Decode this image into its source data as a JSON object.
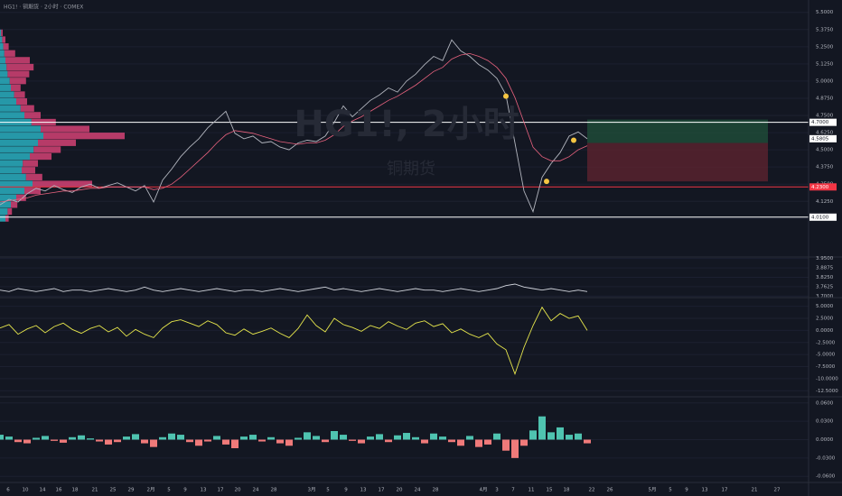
{
  "title": "HG1! · 铜期货 · 2小时 · COMEX",
  "watermark": {
    "main": "HG1!, 2小时",
    "sub": "铜期货"
  },
  "chart_data": [
    {
      "type": "line",
      "name": "price",
      "x": [
        0,
        1,
        2,
        3,
        4,
        5,
        6,
        7,
        8,
        9,
        10,
        11,
        12,
        13,
        14,
        15,
        16,
        17,
        18,
        19,
        20,
        21,
        22,
        23,
        24,
        25,
        26,
        27,
        28,
        29,
        30,
        31,
        32,
        33,
        34,
        35,
        36,
        37,
        38,
        39,
        40,
        41,
        42,
        43,
        44,
        45,
        46,
        47,
        48,
        49,
        50,
        51,
        52,
        53,
        54,
        55,
        56,
        57,
        58,
        59,
        60,
        61,
        62,
        63,
        64,
        65
      ],
      "series": [
        {
          "color": "#b2b5be",
          "values": [
            4.1,
            4.14,
            4.12,
            4.18,
            4.22,
            4.2,
            4.24,
            4.21,
            4.19,
            4.23,
            4.25,
            4.22,
            4.24,
            4.26,
            4.23,
            4.2,
            4.24,
            4.12,
            4.28,
            4.36,
            4.45,
            4.52,
            4.58,
            4.66,
            4.72,
            4.78,
            4.62,
            4.58,
            4.6,
            4.55,
            4.56,
            4.52,
            4.5,
            4.55,
            4.57,
            4.56,
            4.6,
            4.7,
            4.82,
            4.74,
            4.8,
            4.86,
            4.9,
            4.95,
            4.92,
            5.0,
            5.05,
            5.12,
            5.18,
            5.15,
            5.3,
            5.22,
            5.18,
            5.12,
            5.08,
            5.02,
            4.9,
            4.55,
            4.2,
            4.05,
            4.3,
            4.4,
            4.48,
            4.6,
            4.63,
            4.58
          ]
        },
        {
          "color": "#e8627e",
          "values": [
            4.12,
            4.13,
            4.14,
            4.15,
            4.17,
            4.18,
            4.19,
            4.2,
            4.2,
            4.21,
            4.22,
            4.22,
            4.23,
            4.23,
            4.23,
            4.23,
            4.23,
            4.21,
            4.22,
            4.25,
            4.3,
            4.36,
            4.42,
            4.48,
            4.55,
            4.61,
            4.64,
            4.63,
            4.62,
            4.6,
            4.58,
            4.56,
            4.55,
            4.54,
            4.55,
            4.55,
            4.57,
            4.61,
            4.67,
            4.71,
            4.74,
            4.78,
            4.82,
            4.86,
            4.89,
            4.93,
            4.97,
            5.02,
            5.07,
            5.1,
            5.16,
            5.19,
            5.2,
            5.18,
            5.15,
            5.1,
            5.02,
            4.88,
            4.7,
            4.52,
            4.45,
            4.42,
            4.42,
            4.45,
            4.5,
            4.53
          ]
        }
      ],
      "xlim": [
        0,
        89.5
      ],
      "xticks": [
        {
          "value": 0.9,
          "label": "6"
        },
        {
          "value": 2.8,
          "label": "10"
        },
        {
          "value": 4.7,
          "label": "14"
        },
        {
          "value": 6.5,
          "label": "16"
        },
        {
          "value": 8.3,
          "label": "18"
        },
        {
          "value": 10.5,
          "label": "21"
        },
        {
          "value": 12.5,
          "label": "25"
        },
        {
          "value": 14.5,
          "label": "29"
        },
        {
          "value": 16.7,
          "label": "2月"
        },
        {
          "value": 18.7,
          "label": "5"
        },
        {
          "value": 20.5,
          "label": "9"
        },
        {
          "value": 22.5,
          "label": "13"
        },
        {
          "value": 24.4,
          "label": "17"
        },
        {
          "value": 26.3,
          "label": "20"
        },
        {
          "value": 28.3,
          "label": "24"
        },
        {
          "value": 30.3,
          "label": "28"
        },
        {
          "value": 34.5,
          "label": "3月"
        },
        {
          "value": 36.3,
          "label": "5"
        },
        {
          "value": 38.3,
          "label": "9"
        },
        {
          "value": 40.2,
          "label": "13"
        },
        {
          "value": 42.2,
          "label": "17"
        },
        {
          "value": 44.2,
          "label": "20"
        },
        {
          "value": 46.2,
          "label": "24"
        },
        {
          "value": 48.2,
          "label": "28"
        },
        {
          "value": 53.5,
          "label": "4月"
        },
        {
          "value": 55.0,
          "label": "3"
        },
        {
          "value": 56.8,
          "label": "7"
        },
        {
          "value": 58.8,
          "label": "11"
        },
        {
          "value": 60.8,
          "label": "15"
        },
        {
          "value": 62.7,
          "label": "18"
        },
        {
          "value": 65.5,
          "label": "22"
        },
        {
          "value": 67.5,
          "label": "26"
        },
        {
          "value": 72.2,
          "label": "5月"
        },
        {
          "value": 74.2,
          "label": "5"
        },
        {
          "value": 76.0,
          "label": "9"
        },
        {
          "value": 78.0,
          "label": "13"
        },
        {
          "value": 80.2,
          "label": "17"
        },
        {
          "value": 83.5,
          "label": "21"
        },
        {
          "value": 86.0,
          "label": "27"
        }
      ],
      "ylim": [
        3.72,
        5.59
      ],
      "yticks": [
        {
          "value": 4.0,
          "label": "4.0000"
        },
        {
          "value": 4.125,
          "label": "4.1250"
        },
        {
          "value": 4.25,
          "label": "4.2500"
        },
        {
          "value": 4.375,
          "label": "4.3750"
        },
        {
          "value": 4.5,
          "label": "4.5000"
        },
        {
          "value": 4.625,
          "label": "4.6250"
        },
        {
          "value": 4.75,
          "label": "4.7500"
        },
        {
          "value": 4.875,
          "label": "4.8750"
        },
        {
          "value": 5.0,
          "label": "5.0000"
        },
        {
          "value": 5.125,
          "label": "5.1250"
        },
        {
          "value": 5.25,
          "label": "5.2500"
        },
        {
          "value": 5.375,
          "label": "5.3750"
        },
        {
          "value": 5.5,
          "label": "5.5000"
        }
      ],
      "grid": true,
      "levels": [
        {
          "value": 4.7,
          "label": "4.7000",
          "color": "#ffffff"
        },
        {
          "value": 4.23,
          "label": "4.2300",
          "color": "#f23645"
        },
        {
          "value": 4.01,
          "label": "4.0100",
          "color": "#ffffff"
        }
      ],
      "last_price": {
        "value": 4.5805,
        "label": "4.5805"
      },
      "position": {
        "x": [
          65,
          85
        ],
        "take_profit": 4.72,
        "entry": 4.55,
        "stop": 4.27
      },
      "signals": {
        "x": [
          56,
          60.5,
          63.5
        ],
        "values": [
          4.89,
          4.27,
          4.57
        ],
        "color": "#f5c542"
      },
      "profile": {
        "prices": [
          4.0,
          4.05,
          4.1,
          4.15,
          4.2,
          4.25,
          4.3,
          4.35,
          4.4,
          4.45,
          4.5,
          4.55,
          4.6,
          4.65,
          4.7,
          4.75,
          4.8,
          4.85,
          4.9,
          4.95,
          5.0,
          5.05,
          5.1,
          5.15,
          5.2,
          5.25,
          5.3,
          5.35
        ],
        "buy": [
          10,
          14,
          20,
          30,
          45,
          60,
          48,
          40,
          42,
          55,
          62,
          70,
          80,
          75,
          58,
          45,
          38,
          30,
          26,
          20,
          18,
          14,
          12,
          10,
          8,
          6,
          4,
          2
        ],
        "sell": [
          6,
          8,
          12,
          18,
          30,
          110,
          30,
          25,
          28,
          40,
          50,
          70,
          150,
          90,
          45,
          30,
          25,
          20,
          20,
          18,
          30,
          40,
          50,
          45,
          20,
          10,
          6,
          3
        ],
        "buy_color": "#2ec4d6",
        "sell_color": "#e0457b"
      }
    },
    {
      "type": "line",
      "name": "volume",
      "series": [
        {
          "color": "#d1d4dc",
          "values": [
            3.74,
            3.73,
            3.75,
            3.74,
            3.73,
            3.74,
            3.75,
            3.73,
            3.74,
            3.74,
            3.73,
            3.74,
            3.75,
            3.74,
            3.73,
            3.74,
            3.76,
            3.74,
            3.73,
            3.74,
            3.75,
            3.74,
            3.73,
            3.74,
            3.75,
            3.74,
            3.73,
            3.74,
            3.74,
            3.73,
            3.74,
            3.75,
            3.74,
            3.73,
            3.74,
            3.75,
            3.76,
            3.74,
            3.75,
            3.74,
            3.73,
            3.74,
            3.75,
            3.74,
            3.73,
            3.74,
            3.75,
            3.74,
            3.74,
            3.73,
            3.74,
            3.75,
            3.74,
            3.73,
            3.74,
            3.75,
            3.77,
            3.78,
            3.76,
            3.75,
            3.74,
            3.75,
            3.74,
            3.73,
            3.74,
            3.73
          ]
        }
      ],
      "ylim": [
        3.69,
        3.96
      ],
      "yticks": [
        {
          "value": 3.7,
          "label": "3.7000"
        },
        {
          "value": 3.7625,
          "label": "3.7625"
        },
        {
          "value": 3.825,
          "label": "3.8250"
        },
        {
          "value": 3.8875,
          "label": "3.8875"
        },
        {
          "value": 3.95,
          "label": "3.9500"
        }
      ],
      "grid": true
    },
    {
      "type": "line",
      "name": "oscillator",
      "series": [
        {
          "color": "#e6e64c",
          "values": [
            0.5,
            1.2,
            -0.8,
            0.3,
            1.0,
            -0.5,
            0.8,
            1.5,
            0.2,
            -0.6,
            0.4,
            1.0,
            -0.3,
            0.6,
            -1.2,
            0.2,
            -0.8,
            -1.5,
            0.5,
            1.8,
            2.2,
            1.5,
            0.8,
            2.0,
            1.2,
            -0.5,
            -1.0,
            0.3,
            -0.8,
            -0.2,
            0.5,
            -0.6,
            -1.5,
            0.4,
            3.2,
            1.0,
            -0.3,
            2.5,
            1.2,
            0.6,
            -0.2,
            1.0,
            0.4,
            1.8,
            0.9,
            0.2,
            1.5,
            2.0,
            0.8,
            1.4,
            -0.5,
            0.3,
            -0.8,
            -1.5,
            -0.6,
            -2.8,
            -4.0,
            -9.0,
            -3.5,
            1.0,
            4.8,
            2.0,
            3.5,
            2.5,
            3.0,
            0.0
          ]
        }
      ],
      "ylim": [
        -13.75,
        6.79
      ],
      "yticks": [
        {
          "value": 5,
          "label": "5.0000"
        },
        {
          "value": 2.5,
          "label": "2.5000"
        },
        {
          "value": 0,
          "label": "0.0000"
        },
        {
          "value": -2.5,
          "label": "-2.5000"
        },
        {
          "value": -5,
          "label": "-5.0000"
        },
        {
          "value": -7.5,
          "label": "-7.5000"
        },
        {
          "value": -10,
          "label": "-10.0000"
        },
        {
          "value": -12.5,
          "label": "-12.5000"
        }
      ],
      "grid": true
    },
    {
      "type": "bar",
      "name": "histogram",
      "values": [
        0.008,
        0.005,
        -0.004,
        -0.006,
        0.003,
        0.006,
        -0.002,
        -0.005,
        0.004,
        0.007,
        0.002,
        -0.003,
        -0.008,
        -0.004,
        0.005,
        0.009,
        -0.006,
        -0.012,
        0.004,
        0.01,
        0.008,
        -0.004,
        -0.01,
        -0.003,
        0.006,
        -0.008,
        -0.014,
        0.005,
        0.008,
        -0.003,
        0.004,
        -0.006,
        -0.01,
        0.003,
        0.012,
        0.006,
        -0.004,
        0.014,
        0.008,
        -0.002,
        -0.006,
        0.005,
        0.009,
        -0.004,
        0.007,
        0.011,
        0.004,
        -0.006,
        0.01,
        0.005,
        -0.004,
        -0.01,
        0.006,
        -0.012,
        -0.008,
        0.01,
        -0.018,
        -0.03,
        -0.01,
        0.015,
        0.038,
        0.012,
        0.02,
        0.008,
        0.01,
        -0.006
      ],
      "up_color": "#4fc3b0",
      "down_color": "#f07a7a",
      "ylim": [
        -0.07,
        0.07
      ],
      "yticks": [
        {
          "value": 0.06,
          "label": "0.0600"
        },
        {
          "value": 0.03,
          "label": "0.0300"
        },
        {
          "value": 0,
          "label": "0.0000"
        },
        {
          "value": -0.03,
          "label": "-0.0300"
        },
        {
          "value": -0.06,
          "label": "-0.0600"
        }
      ],
      "grid": true
    }
  ]
}
